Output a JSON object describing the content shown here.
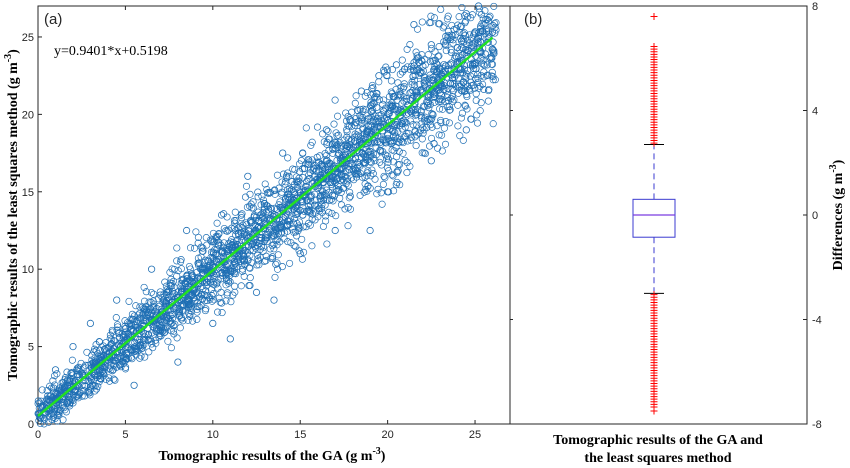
{
  "chart_data": [
    {
      "type": "scatter",
      "panel_label": "(a)",
      "xlabel": "Tomographic results of the GA (g m",
      "xlabel_sup": "-3",
      "xlabel_end": ")",
      "ylabel": "Tomographic results of the least squares method (g m",
      "ylabel_sup": "-3",
      "ylabel_end": ")",
      "xlim": [
        0,
        27
      ],
      "ylim": [
        0,
        27
      ],
      "xticks": [
        "0",
        "5",
        "10",
        "15",
        "20",
        "25"
      ],
      "yticks": [
        "0",
        "5",
        "10",
        "15",
        "20",
        "25"
      ],
      "fit_equation": "y=0.9401*x+0.5198",
      "fit": {
        "slope": 0.9401,
        "intercept": 0.5198,
        "x_range": [
          0,
          26
        ]
      },
      "series": [
        {
          "marker": "open-circle",
          "color": "#1f6fb4",
          "points_sample": [
            [
              0.3,
              0.4
            ],
            [
              0.5,
              1.0
            ],
            [
              0.8,
              0.3
            ],
            [
              1.0,
              1.5
            ],
            [
              1.2,
              0.7
            ],
            [
              1.5,
              2.2
            ],
            [
              1.8,
              1.3
            ],
            [
              2.0,
              2.6
            ],
            [
              2.3,
              1.9
            ],
            [
              2.6,
              3.1
            ],
            [
              3.0,
              2.4
            ],
            [
              3.3,
              3.8
            ],
            [
              3.6,
              2.9
            ],
            [
              4.0,
              4.3
            ],
            [
              4.3,
              3.5
            ],
            [
              4.6,
              5.1
            ],
            [
              5.0,
              4.1
            ],
            [
              5.3,
              5.6
            ],
            [
              5.6,
              4.7
            ],
            [
              6.0,
              6.3
            ],
            [
              6.3,
              5.4
            ],
            [
              6.6,
              7.0
            ],
            [
              7.0,
              6.0
            ],
            [
              7.3,
              7.6
            ],
            [
              7.6,
              6.5
            ],
            [
              8.0,
              8.2
            ],
            [
              8.3,
              7.3
            ],
            [
              8.6,
              8.9
            ],
            [
              9.0,
              8.0
            ],
            [
              9.3,
              9.4
            ],
            [
              9.6,
              8.6
            ],
            [
              10.0,
              10.1
            ],
            [
              10.3,
              9.3
            ],
            [
              10.6,
              10.8
            ],
            [
              11.0,
              9.9
            ],
            [
              11.3,
              11.4
            ],
            [
              11.6,
              10.5
            ],
            [
              12.0,
              12.0
            ],
            [
              12.3,
              11.2
            ],
            [
              12.6,
              12.7
            ],
            [
              13.0,
              11.9
            ],
            [
              13.3,
              13.3
            ],
            [
              13.6,
              12.6
            ],
            [
              14.0,
              13.8
            ],
            [
              14.3,
              13.1
            ],
            [
              14.6,
              14.5
            ],
            [
              15.0,
              13.8
            ],
            [
              15.3,
              15.1
            ],
            [
              15.6,
              14.4
            ],
            [
              16.0,
              15.8
            ],
            [
              16.3,
              15.0
            ],
            [
              16.6,
              16.4
            ],
            [
              17.0,
              15.6
            ],
            [
              17.3,
              17.0
            ],
            [
              17.6,
              16.3
            ],
            [
              18.0,
              17.7
            ],
            [
              18.3,
              16.9
            ],
            [
              18.6,
              18.4
            ],
            [
              19.0,
              17.6
            ],
            [
              19.3,
              19.0
            ],
            [
              19.6,
              18.2
            ],
            [
              20.0,
              19.6
            ],
            [
              20.3,
              18.9
            ],
            [
              20.6,
              20.3
            ],
            [
              21.0,
              19.5
            ],
            [
              21.3,
              20.9
            ],
            [
              21.6,
              20.1
            ],
            [
              22.0,
              21.5
            ],
            [
              22.3,
              20.8
            ],
            [
              22.6,
              22.2
            ],
            [
              23.0,
              21.4
            ],
            [
              23.3,
              22.8
            ],
            [
              23.6,
              22.0
            ],
            [
              24.0,
              23.4
            ],
            [
              24.3,
              22.7
            ],
            [
              24.6,
              24.1
            ],
            [
              25.0,
              23.3
            ],
            [
              25.3,
              24.7
            ],
            [
              25.6,
              23.9
            ],
            [
              26.0,
              25.3
            ],
            [
              18.5,
              21.5
            ],
            [
              19.5,
              22.5
            ],
            [
              20.5,
              23.2
            ],
            [
              22.5,
              24.5
            ],
            [
              24.5,
              26.5
            ],
            [
              25.2,
              27.0
            ],
            [
              21.5,
              25.8
            ],
            [
              12.0,
              16.0
            ],
            [
              14.0,
              17.5
            ],
            [
              16.5,
              19.0
            ],
            [
              8.5,
              12.5
            ],
            [
              10.5,
              13.5
            ],
            [
              6.5,
              10.0
            ],
            [
              4.5,
              8.0
            ],
            [
              3.0,
              6.5
            ],
            [
              2.0,
              5.0
            ],
            [
              1.0,
              3.5
            ],
            [
              5.5,
              2.5
            ],
            [
              8.0,
              4.0
            ],
            [
              10.0,
              6.5
            ],
            [
              12.5,
              8.5
            ],
            [
              15.0,
              11.0
            ],
            [
              17.0,
              12.5
            ],
            [
              20.0,
              15.0
            ],
            [
              22.5,
              17.0
            ],
            [
              24.5,
              19.0
            ],
            [
              19.0,
              12.5
            ],
            [
              13.5,
              8.0
            ],
            [
              11.0,
              5.5
            ]
          ]
        }
      ]
    },
    {
      "type": "box",
      "panel_label": "(b)",
      "xlabel_line1": "Tomographic results of the GA and",
      "xlabel_line2": "the least squares method",
      "ylabel": "Differences (g m",
      "ylabel_sup": "-3",
      "ylabel_end": ")",
      "ylim": [
        -8,
        8
      ],
      "yticks": [
        "-8",
        "-4",
        "0",
        "4",
        "8"
      ],
      "box": {
        "median": 0.0,
        "q1": -0.85,
        "q3": 0.6,
        "whisker_low": -3.0,
        "whisker_high": 2.7,
        "box_color": "#3b3bd0",
        "median_color": "#7a3ce0",
        "whisker_color": "#3b3bd0",
        "outlier_color": "#ff0000",
        "outliers_high": [
          2.75,
          2.85,
          2.95,
          3.05,
          3.15,
          3.25,
          3.35,
          3.45,
          3.55,
          3.65,
          3.75,
          3.85,
          3.95,
          4.05,
          4.15,
          4.25,
          4.35,
          4.45,
          4.55,
          4.65,
          4.75,
          4.85,
          4.95,
          5.05,
          5.15,
          5.25,
          5.35,
          5.45,
          5.55,
          5.65,
          5.75,
          5.85,
          5.95,
          6.05,
          6.15,
          6.25,
          6.35,
          6.45,
          7.6
        ],
        "outliers_low": [
          -3.05,
          -3.15,
          -3.25,
          -3.35,
          -3.45,
          -3.55,
          -3.65,
          -3.75,
          -3.85,
          -3.95,
          -4.05,
          -4.15,
          -4.25,
          -4.35,
          -4.45,
          -4.55,
          -4.65,
          -4.75,
          -4.85,
          -4.95,
          -5.05,
          -5.15,
          -5.25,
          -5.35,
          -5.45,
          -5.55,
          -5.65,
          -5.75,
          -5.85,
          -5.95,
          -6.05,
          -6.15,
          -6.25,
          -6.35,
          -6.45,
          -6.55,
          -6.65,
          -6.75,
          -6.85,
          -6.95,
          -7.05,
          -7.15,
          -7.25,
          -7.35,
          -7.5
        ]
      }
    }
  ]
}
